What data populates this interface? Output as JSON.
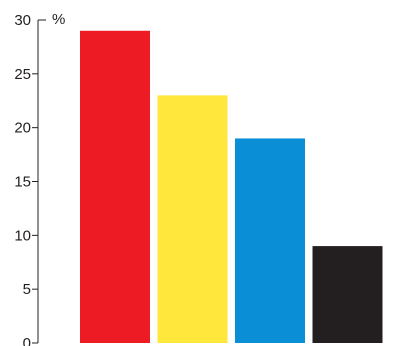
{
  "chart_data": {
    "type": "bar",
    "title": "",
    "xlabel": "",
    "ylabel": "%",
    "ylim": [
      0,
      30
    ],
    "yticks": [
      "0",
      "5",
      "10",
      "15",
      "20",
      "25",
      "30"
    ],
    "categories": [
      "",
      "",
      "",
      ""
    ],
    "values": [
      29,
      23,
      19,
      9
    ],
    "colors": [
      "#ed1c24",
      "#ffe83b",
      "#0a8fd6",
      "#231f20"
    ],
    "grid": false,
    "legend": "none"
  }
}
